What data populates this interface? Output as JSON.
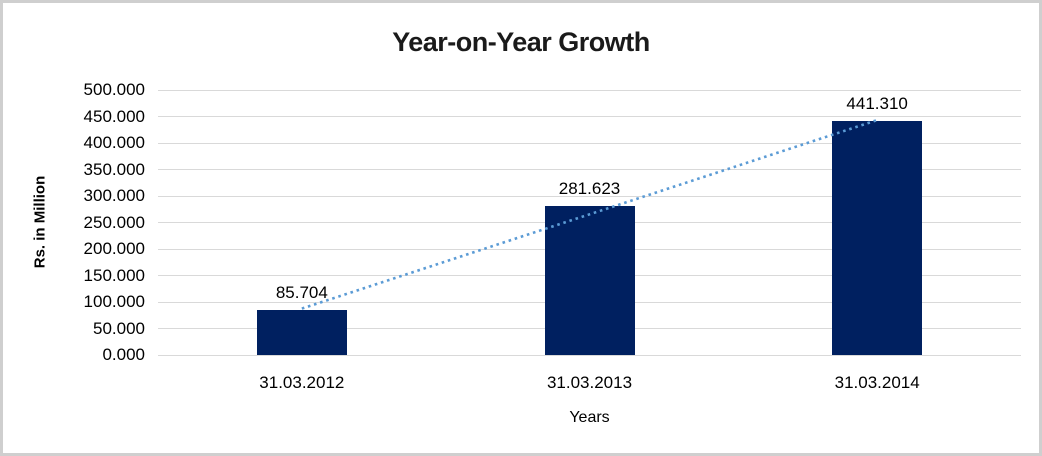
{
  "chart_data": {
    "type": "bar",
    "title": "Year-on-Year Growth",
    "categories": [
      "31.03.2012",
      "31.03.2013",
      "31.03.2014"
    ],
    "values": [
      85.704,
      281.623,
      441.31
    ],
    "value_labels": [
      "85.704",
      "281.623",
      "441.310"
    ],
    "xlabel": "Years",
    "ylabel": "Rs. in Million",
    "ylim": [
      0,
      500
    ],
    "ytick_step": 50,
    "ytick_labels": [
      "0.000",
      "50.000",
      "100.000",
      "150.000",
      "200.000",
      "250.000",
      "300.000",
      "350.000",
      "400.000",
      "450.000",
      "500.000"
    ],
    "grid": true,
    "legend": "none",
    "colors": {
      "bar": "#002060",
      "trendline": "#5b9bd5",
      "gridline": "#d9d9d9",
      "text": "#000000",
      "frame_border": "#cfcfcf"
    },
    "trendline": {
      "style": "dotted",
      "color": "#5b9bd5",
      "from_category": "31.03.2012",
      "to_category": "31.03.2014"
    }
  }
}
